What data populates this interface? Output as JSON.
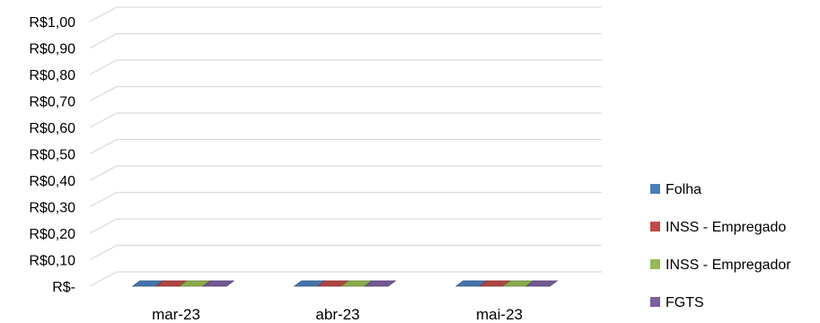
{
  "chart_data": {
    "type": "bar",
    "style": "3d-clustered-column",
    "categories": [
      "mar-23",
      "abr-23",
      "mai-23"
    ],
    "series": [
      {
        "name": "Folha",
        "color": "#4a7ebb",
        "values": [
          0,
          0,
          0
        ]
      },
      {
        "name": "INSS - Empregado",
        "color": "#be4b48",
        "values": [
          0,
          0,
          0
        ]
      },
      {
        "name": "INSS - Empregador",
        "color": "#98b954",
        "values": [
          0,
          0,
          0
        ]
      },
      {
        "name": "FGTS",
        "color": "#7d60a0",
        "values": [
          0,
          0,
          0
        ]
      }
    ],
    "yticks": [
      "R$-",
      "R$0,10",
      "R$0,20",
      "R$0,30",
      "R$0,40",
      "R$0,50",
      "R$0,60",
      "R$0,70",
      "R$0,80",
      "R$0,90",
      "R$1,00"
    ],
    "ylim": [
      0,
      1
    ],
    "grid": true,
    "legend_position": "right",
    "title": "",
    "xlabel": "",
    "ylabel": ""
  }
}
